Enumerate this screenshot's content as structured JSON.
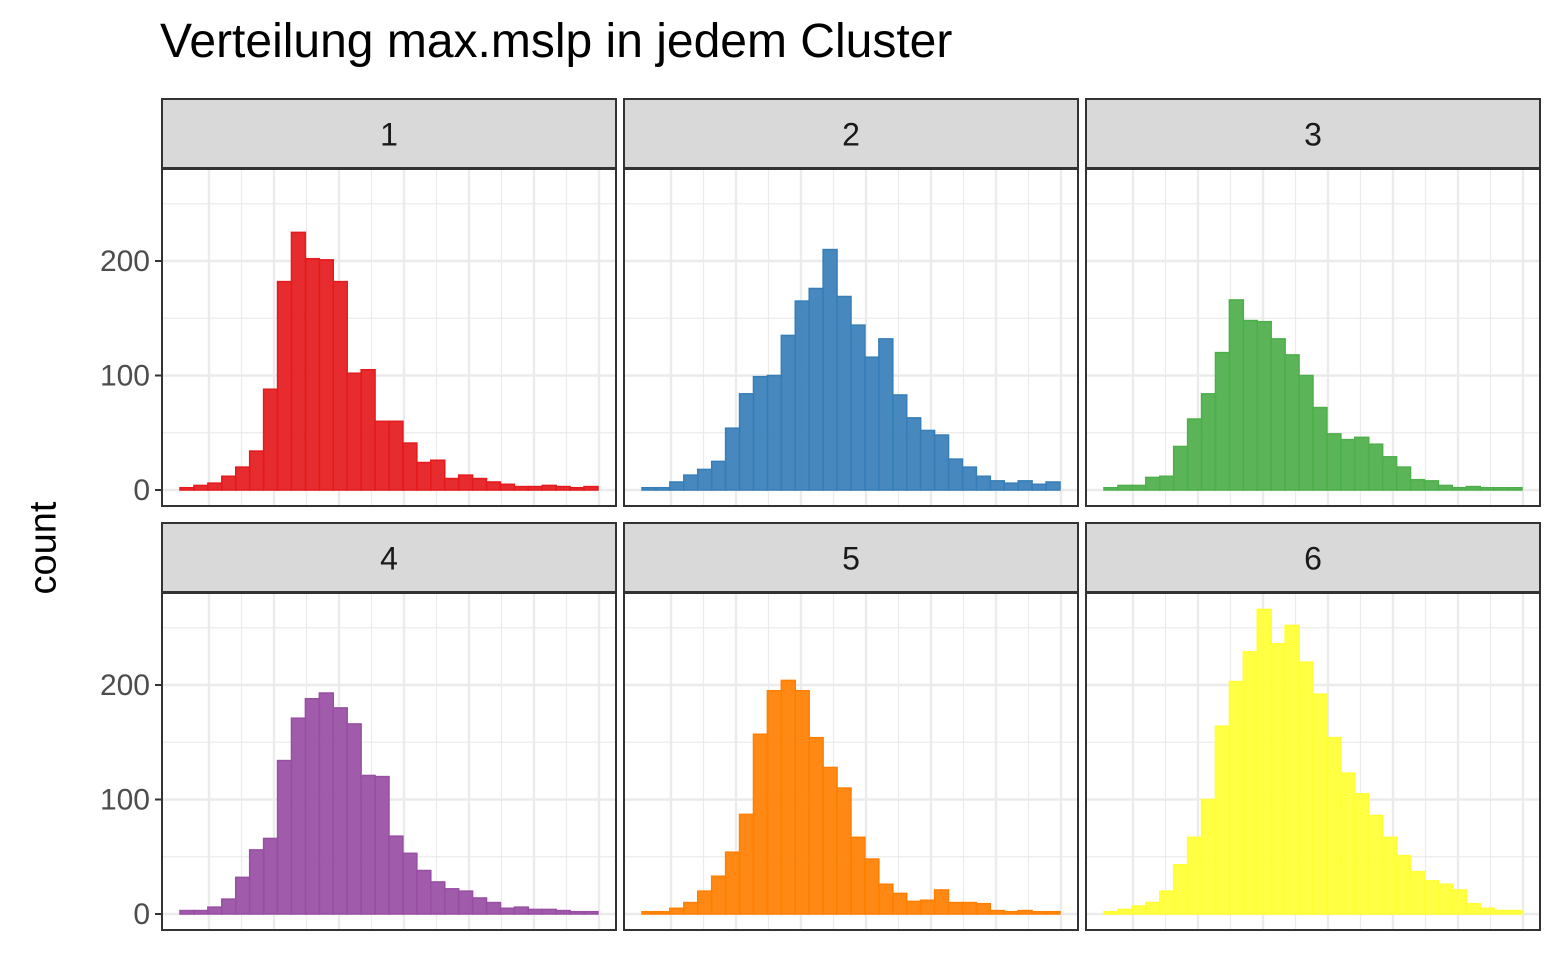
{
  "chart_data": {
    "type": "bar",
    "title": "Verteilung max.mslp in jedem Cluster",
    "xlabel": "",
    "ylabel": "count",
    "ylim": [
      0,
      280
    ],
    "y_ticks": [
      0,
      100,
      200
    ],
    "grid": true,
    "legend": "none",
    "bins": 30,
    "panels": [
      {
        "name": "1",
        "color": "#E41A1C",
        "values": [
          2,
          4,
          6,
          12,
          20,
          34,
          88,
          182,
          225,
          202,
          201,
          182,
          102,
          105,
          60,
          60,
          41,
          24,
          26,
          10,
          13,
          10,
          7,
          5,
          3,
          3,
          4,
          3,
          2,
          3
        ]
      },
      {
        "name": "2",
        "color": "#377EB8",
        "values": [
          2,
          2,
          7,
          13,
          18,
          25,
          54,
          84,
          99,
          100,
          135,
          165,
          176,
          210,
          169,
          144,
          116,
          132,
          83,
          63,
          52,
          48,
          27,
          20,
          12,
          8,
          6,
          8,
          5,
          7
        ]
      },
      {
        "name": "3",
        "color": "#4DAF4A",
        "values": [
          2,
          4,
          4,
          11,
          12,
          38,
          62,
          84,
          120,
          166,
          148,
          147,
          132,
          118,
          100,
          72,
          49,
          44,
          46,
          40,
          29,
          20,
          9,
          8,
          4,
          2,
          3,
          2,
          2,
          2
        ]
      },
      {
        "name": "4",
        "color": "#984EA3",
        "values": [
          3,
          3,
          6,
          13,
          32,
          56,
          66,
          134,
          171,
          188,
          193,
          180,
          166,
          121,
          120,
          68,
          53,
          38,
          28,
          22,
          20,
          14,
          10,
          5,
          6,
          4,
          4,
          3,
          2,
          2
        ]
      },
      {
        "name": "5",
        "color": "#FF7F00",
        "values": [
          2,
          2,
          5,
          10,
          20,
          33,
          54,
          87,
          157,
          195,
          204,
          195,
          154,
          128,
          110,
          67,
          48,
          26,
          18,
          11,
          12,
          21,
          10,
          10,
          9,
          3,
          2,
          3,
          2,
          2
        ]
      },
      {
        "name": "6",
        "color": "#FFFF33",
        "values": [
          2,
          4,
          7,
          10,
          20,
          43,
          67,
          100,
          164,
          203,
          229,
          266,
          236,
          252,
          220,
          192,
          154,
          123,
          105,
          86,
          67,
          51,
          37,
          29,
          26,
          21,
          9,
          5,
          3,
          3
        ]
      }
    ]
  }
}
